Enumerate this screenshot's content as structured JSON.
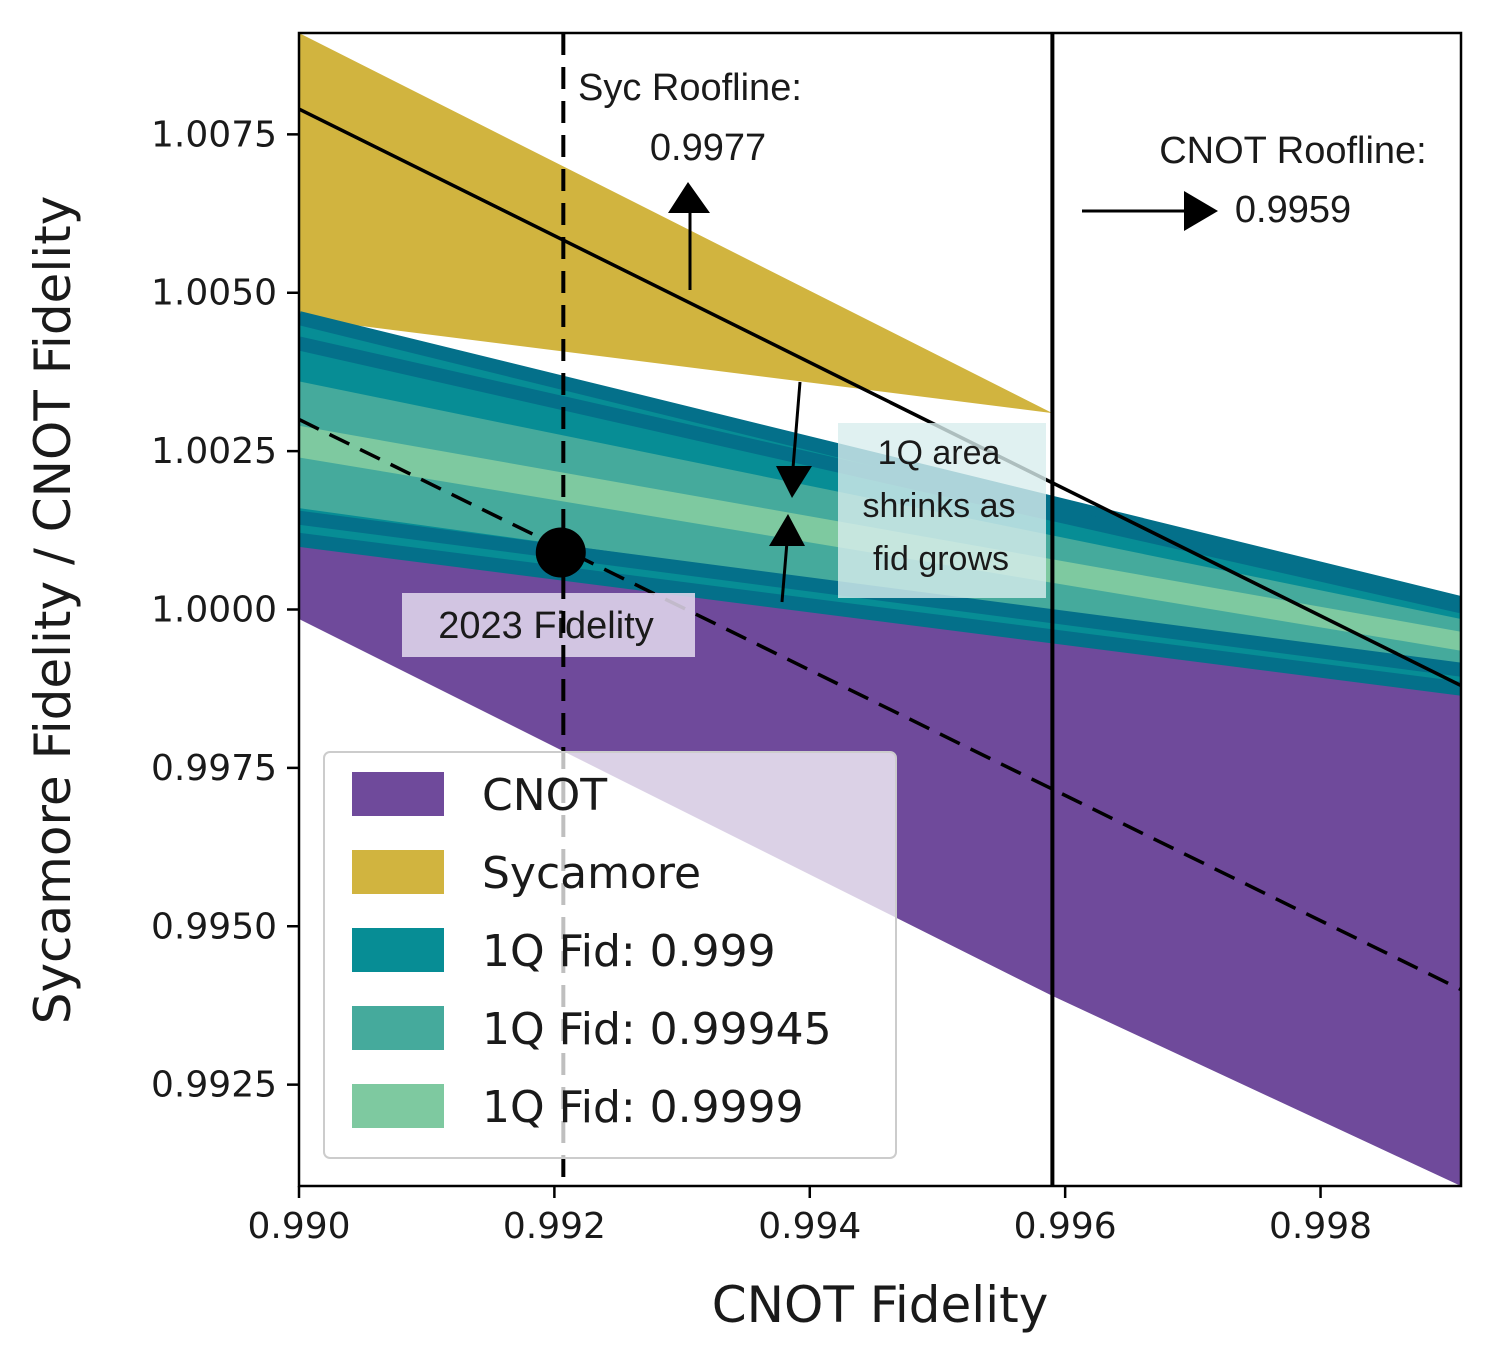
{
  "chart_data": {
    "type": "area",
    "xlabel": "CNOT Fidelity",
    "ylabel": "Sycamore Fidelity / CNOT Fidelity",
    "xlim": [
      0.99,
      0.9991
    ],
    "ylim": [
      0.9909,
      1.0091
    ],
    "xticks": [
      0.99,
      0.992,
      0.994,
      0.996,
      0.998
    ],
    "xtick_labels": [
      "0.990",
      "0.992",
      "0.994",
      "0.996",
      "0.998"
    ],
    "yticks": [
      0.9925,
      0.995,
      0.9975,
      1.0,
      1.0025,
      1.005,
      1.0075
    ],
    "ytick_labels": [
      "0.9925",
      "0.9950",
      "0.9975",
      "1.0000",
      "1.0025",
      "1.0050",
      "1.0075"
    ],
    "regions": [
      {
        "name": "CNOT",
        "color": "#6f4a9b",
        "x": [
          0.99,
          0.9959,
          0.9991
        ],
        "upper": [
          1.0011,
          0.99955,
          0.99875
        ],
        "lower": [
          0.99985,
          0.9939,
          0.9909
        ]
      },
      {
        "name": "Sycamore",
        "color": "#d1b43f",
        "x": [
          0.99,
          0.9959,
          0.9991
        ],
        "upper": [
          1.0091,
          1.0031,
          0.9998
        ],
        "lower": [
          1.0046,
          1.0031,
          0.9998
        ]
      },
      {
        "name": "1Q Fid: 0.999",
        "color": "#078d95",
        "x": [
          0.99,
          0.9991
        ],
        "upper": [
          1.0046,
          1.0001
        ],
        "lower": [
          1.0011,
          0.99875
        ]
      },
      {
        "name": "1Q Fid: 0.99945",
        "color": "#45aa9c",
        "x": [
          0.99,
          0.9991
        ],
        "upper": [
          1.0036,
          0.99985
        ],
        "lower": [
          1.0016,
          0.99905
        ]
      },
      {
        "name": "1Q Fid: 0.9999",
        "color": "#7ec9a0",
        "x": [
          0.99,
          0.9991
        ],
        "upper": [
          1.0029,
          0.99965
        ],
        "lower": [
          1.0024,
          0.99935
        ]
      }
    ],
    "band_edges": {
      "color": "#04708a",
      "lines": [
        {
          "x": [
            0.99,
            0.9991
          ],
          "y": [
            1.0046,
            1.0001
          ]
        },
        {
          "x": [
            0.99,
            0.9991
          ],
          "y": [
            1.0042,
            1.00005
          ]
        },
        {
          "x": [
            0.99,
            0.9991
          ],
          "y": [
            1.00145,
            0.99905
          ]
        },
        {
          "x": [
            0.99,
            0.9991
          ],
          "y": [
            1.0011,
            0.99875
          ]
        }
      ]
    },
    "lines": [
      {
        "name": "Sycamore roofline trend",
        "style": "solid",
        "x": [
          0.99,
          0.9991
        ],
        "y": [
          1.0079,
          0.9988
        ]
      },
      {
        "name": "2023 trend",
        "style": "dashed",
        "x": [
          0.99,
          0.9991
        ],
        "y": [
          1.003,
          0.994
        ]
      }
    ],
    "vlines": [
      {
        "x": 0.99207,
        "style": "dashed"
      },
      {
        "x": 0.9959,
        "style": "solid"
      }
    ],
    "point": {
      "label": "2023 Fidelity",
      "x": 0.99205,
      "y": 1.0009
    },
    "annotations": [
      {
        "text_lines": [
          "Syc Roofline:",
          "0.9977"
        ]
      },
      {
        "text_lines": [
          "CNOT Roofline:",
          "0.9959"
        ]
      },
      {
        "text_lines": [
          "1Q area",
          "shrinks as",
          "fid grows"
        ]
      }
    ],
    "legend": {
      "position": "lower-left",
      "entries": [
        {
          "label": "CNOT",
          "color": "#6f4a9b"
        },
        {
          "label": "Sycamore",
          "color": "#d1b43f"
        },
        {
          "label": "1Q Fid: 0.999",
          "color": "#078d95"
        },
        {
          "label": "1Q Fid: 0.99945",
          "color": "#45aa9c"
        },
        {
          "label": "1Q Fid: 0.9999",
          "color": "#7ec9a0"
        }
      ]
    }
  }
}
